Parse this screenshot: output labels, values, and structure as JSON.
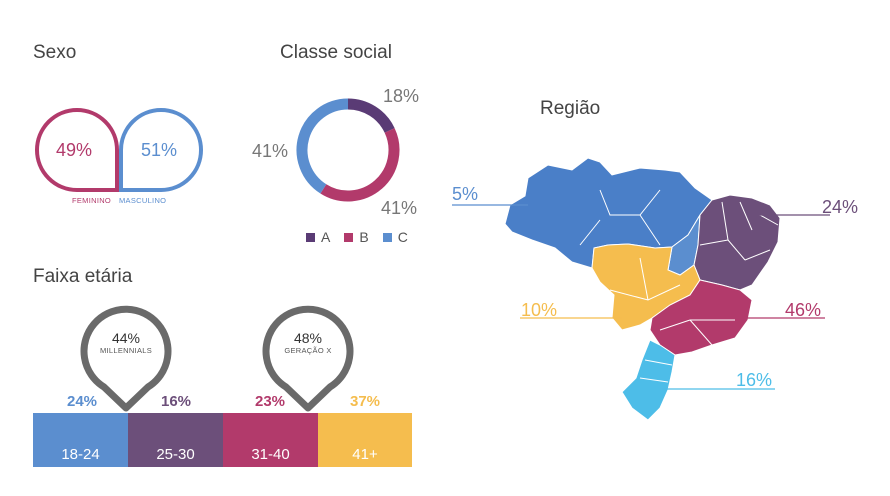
{
  "colors": {
    "purple": "#5a3b75",
    "magenta": "#b23a6b",
    "blue": "#5b8ecf",
    "yellow": "#f5bd4e",
    "lightblue": "#4dbde8",
    "mauve": "#6c4f7a",
    "grey": "#6a6a6a"
  },
  "sexo": {
    "title": "Sexo",
    "feminino_pct": "49%",
    "masculino_pct": "51%",
    "feminino_label": "FEMININO",
    "masculino_label": "MASCULINO"
  },
  "classe": {
    "title": "Classe social",
    "a_pct": "18%",
    "b_pct": "41%",
    "c_pct": "41%",
    "legend": [
      "A",
      "B",
      "C"
    ]
  },
  "regiao": {
    "title": "Região",
    "norte_pct": "5%",
    "nordeste_pct": "24%",
    "centro_oeste_pct": "10%",
    "sudeste_pct": "46%",
    "sul_pct": "16%"
  },
  "faixa": {
    "title": "Faixa etária",
    "pins": [
      {
        "pct": "44%",
        "label": "MILLENNIALS"
      },
      {
        "pct": "48%",
        "label": "GERAÇÃO X"
      }
    ],
    "segments": [
      {
        "range": "18-24",
        "pct": "24%"
      },
      {
        "range": "25-30",
        "pct": "16%"
      },
      {
        "range": "31-40",
        "pct": "23%"
      },
      {
        "range": "41+",
        "pct": "37%"
      }
    ]
  },
  "chart_data": [
    {
      "type": "pie",
      "title": "Sexo",
      "categories": [
        "FEMININO",
        "MASCULINO"
      ],
      "values": [
        49,
        51
      ]
    },
    {
      "type": "pie",
      "title": "Classe social",
      "categories": [
        "A",
        "B",
        "C"
      ],
      "values": [
        18,
        41,
        41
      ]
    },
    {
      "type": "bar",
      "title": "Faixa etária",
      "categories": [
        "18-24",
        "25-30",
        "31-40",
        "41+"
      ],
      "values": [
        24,
        16,
        23,
        37
      ]
    },
    {
      "type": "other",
      "title": "Região",
      "values": [
        5,
        24,
        10,
        46,
        16
      ]
    }
  ]
}
